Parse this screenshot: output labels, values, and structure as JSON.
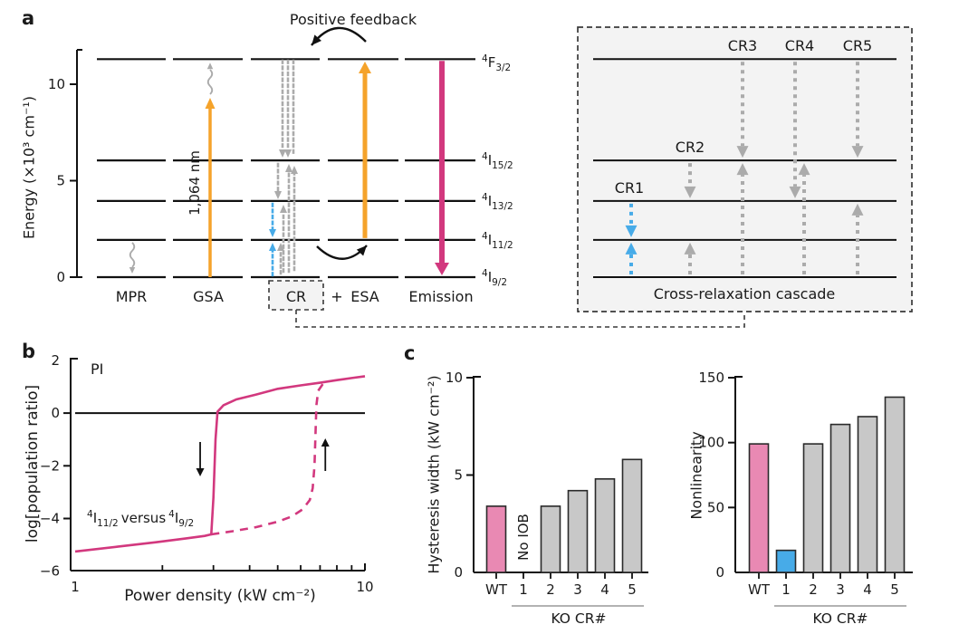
{
  "colors": {
    "text": "#1a1a1a",
    "line": "#111111",
    "orange": "#F5A32B",
    "magenta": "#D2387E",
    "pink_bar": "#E989B3",
    "blue": "#47ABE8",
    "gray_arrow": "#ABABAB",
    "gray_bar": "#C8C8C8",
    "inset_bg": "#F3F3F3",
    "dash_border": "#3a3a3a"
  },
  "panel_a": {
    "label": "a",
    "y_axis": {
      "label": "Energy (×10³ cm⁻¹)",
      "ticks": [
        10,
        5,
        0
      ]
    },
    "levels": [
      {
        "mult": "4",
        "term": "F",
        "j": "3/2",
        "energy": 11.3
      },
      {
        "mult": "4",
        "term": "I",
        "j": "15/2",
        "energy": 6.05
      },
      {
        "mult": "4",
        "term": "I",
        "j": "13/2",
        "energy": 3.95
      },
      {
        "mult": "4",
        "term": "I",
        "j": "11/2",
        "energy": 1.93
      },
      {
        "mult": "4",
        "term": "I",
        "j": "9/2",
        "energy": 0
      }
    ],
    "processes": [
      {
        "id": "mpr",
        "label": "MPR"
      },
      {
        "id": "gsa",
        "label": "GSA"
      },
      {
        "id": "cr",
        "label": "CR",
        "boxed": true
      },
      {
        "id": "plus",
        "label": "+"
      },
      {
        "id": "esa",
        "label": "ESA"
      },
      {
        "id": "emission",
        "label": "Emission"
      }
    ],
    "annotations": {
      "positive_feedback": "Positive feedback",
      "pump_wavelength": "1,064 nm"
    },
    "inset": {
      "caption": "Cross-relaxation cascade",
      "transitions": [
        {
          "name": "CR1",
          "color": "blue",
          "down": {
            "from": 2,
            "to": 3
          },
          "up": {
            "from": 4,
            "to": 3
          }
        },
        {
          "name": "CR2",
          "color": "gray",
          "down": {
            "from": 1,
            "to": 2
          },
          "up": {
            "from": 4,
            "to": 3
          }
        },
        {
          "name": "CR3",
          "color": "gray",
          "down": {
            "from": 0,
            "to": 1
          },
          "up": {
            "from": 4,
            "to": 1
          }
        },
        {
          "name": "CR4",
          "color": "gray",
          "down": {
            "from": 0,
            "to": 2
          },
          "up": {
            "from": 4,
            "to": 1
          }
        },
        {
          "name": "CR5",
          "color": "gray",
          "down": {
            "from": 0,
            "to": 1
          },
          "up": {
            "from": 4,
            "to": 2
          }
        }
      ]
    }
  },
  "panel_b": {
    "label": "b"
  },
  "panel_c": {
    "label": "c"
  },
  "chart_data": [
    {
      "id": "panel_b",
      "type": "line",
      "xlabel": "Power density (kW cm⁻²)",
      "ylabel": "log[population ratio]",
      "xscale": "log",
      "xlim": [
        1,
        10
      ],
      "ylim": [
        -6,
        2
      ],
      "yticks": [
        2,
        0,
        -2,
        -4,
        -6
      ],
      "xticks": [
        1,
        10
      ],
      "xminor": [
        2,
        3,
        4,
        5,
        6,
        7,
        8,
        9
      ],
      "zero_line_y": 0,
      "annotations": {
        "corner_label": "PI",
        "series_label": {
          "left": {
            "mult": "4",
            "term": "I",
            "j": "11/2"
          },
          "middle": "versus",
          "right": {
            "mult": "4",
            "term": "I",
            "j": "9/2"
          }
        },
        "branch_arrows": [
          {
            "x": 2.7,
            "dir": "down"
          },
          {
            "x": 7.3,
            "dir": "up"
          }
        ]
      },
      "series": [
        {
          "name": "decreasing-power branch",
          "style": "solid",
          "points": [
            [
              1,
              -5.25
            ],
            [
              1.4,
              -5.07
            ],
            [
              1.9,
              -4.9
            ],
            [
              2.4,
              -4.76
            ],
            [
              2.8,
              -4.66
            ],
            [
              2.95,
              -4.6
            ],
            [
              3.0,
              -3.2
            ],
            [
              3.05,
              -1.0
            ],
            [
              3.1,
              0.05
            ],
            [
              3.25,
              0.3
            ],
            [
              3.6,
              0.52
            ],
            [
              4.2,
              0.7
            ],
            [
              5,
              0.92
            ],
            [
              6,
              1.05
            ],
            [
              7,
              1.15
            ],
            [
              8,
              1.25
            ],
            [
              9,
              1.33
            ],
            [
              10,
              1.4
            ]
          ]
        },
        {
          "name": "increasing-power branch",
          "style": "dashed",
          "points": [
            [
              2.95,
              -4.6
            ],
            [
              3.5,
              -4.48
            ],
            [
              4.2,
              -4.33
            ],
            [
              5,
              -4.12
            ],
            [
              5.6,
              -3.92
            ],
            [
              6.1,
              -3.65
            ],
            [
              6.45,
              -3.3
            ],
            [
              6.6,
              -2.85
            ],
            [
              6.7,
              -2.0
            ],
            [
              6.75,
              -0.8
            ],
            [
              6.8,
              0.3
            ],
            [
              6.9,
              0.85
            ],
            [
              7.15,
              1.1
            ]
          ]
        }
      ]
    },
    {
      "id": "panel_c_left",
      "type": "bar",
      "ylabel": "Hysteresis width (kW cm⁻²)",
      "ylim": [
        0,
        10
      ],
      "yticks": [
        0,
        5,
        10
      ],
      "categories": [
        "WT",
        "1",
        "2",
        "3",
        "4",
        "5"
      ],
      "values": [
        3.4,
        null,
        3.4,
        4.2,
        4.8,
        5.8
      ],
      "bar_colors": [
        "pink",
        "none",
        "gray",
        "gray",
        "gray",
        "gray"
      ],
      "no_bar_note": "No IOB",
      "group": {
        "label": "KO CR#",
        "from": 1,
        "to": 5
      }
    },
    {
      "id": "panel_c_right",
      "type": "bar",
      "ylabel": "Nonlinearity",
      "ylim": [
        0,
        150
      ],
      "yticks": [
        0,
        50,
        100,
        150
      ],
      "categories": [
        "WT",
        "1",
        "2",
        "3",
        "4",
        "5"
      ],
      "values": [
        99,
        17,
        99,
        114,
        120,
        135
      ],
      "bar_colors": [
        "pink",
        "blue",
        "gray",
        "gray",
        "gray",
        "gray"
      ],
      "group": {
        "label": "KO CR#",
        "from": 1,
        "to": 5
      }
    }
  ]
}
